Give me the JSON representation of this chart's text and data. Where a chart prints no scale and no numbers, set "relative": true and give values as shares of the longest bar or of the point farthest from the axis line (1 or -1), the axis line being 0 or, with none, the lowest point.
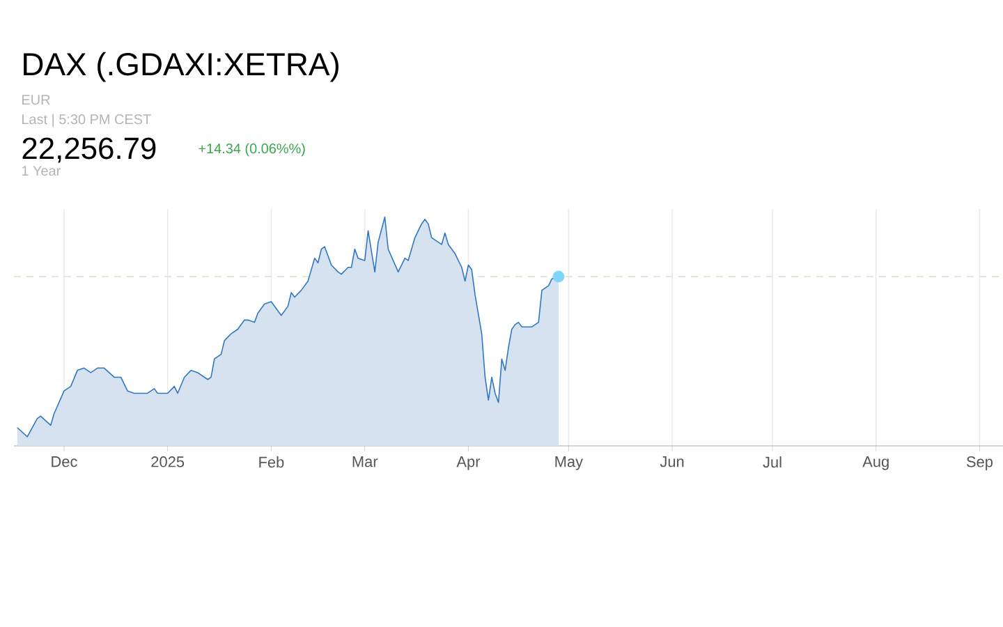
{
  "chart_data": {
    "type": "area",
    "title": "DAX (.GDAXI:XETRA)",
    "annotations": [
      "EUR",
      "Last | 5:30 PM CEST",
      "22,256.79",
      "+14.34 (0.06%%)",
      "1 Year"
    ],
    "relative": true,
    "grid": true,
    "xlim": [
      "2024-11-16",
      "2025-09-08"
    ],
    "xticks": [
      {
        "value": "2024-12-01",
        "label": "Dec"
      },
      {
        "value": "2025-01-01",
        "label": "2025"
      },
      {
        "value": "2025-02-01",
        "label": "Feb"
      },
      {
        "value": "2025-03-01",
        "label": "Mar"
      },
      {
        "value": "2025-04-01",
        "label": "Apr"
      },
      {
        "value": "2025-05-01",
        "label": "May"
      },
      {
        "value": "2025-06-01",
        "label": "Jun"
      },
      {
        "value": "2025-07-01",
        "label": "Jul"
      },
      {
        "value": "2025-08-01",
        "label": "Aug"
      },
      {
        "value": "2025-09-01",
        "label": "Sep"
      }
    ],
    "ref_lines": [
      {
        "axis": "y",
        "value": 0.74,
        "color": "#dcebd3",
        "line_style": "dashed"
      }
    ],
    "series": [
      {
        "color": "#2f78c0",
        "x": [
          "2024-11-17",
          "2024-11-20",
          "2024-11-23",
          "2024-11-24",
          "2024-11-27",
          "2024-11-28",
          "2024-12-01",
          "2024-12-03",
          "2024-12-05",
          "2024-12-07",
          "2024-12-09",
          "2024-12-11",
          "2024-12-13",
          "2024-12-16",
          "2024-12-18",
          "2024-12-20",
          "2024-12-22",
          "2024-12-26",
          "2024-12-28",
          "2024-12-29",
          "2025-01-01",
          "2025-01-03",
          "2025-01-04",
          "2025-01-06",
          "2025-01-08",
          "2025-01-10",
          "2025-01-13",
          "2025-01-14",
          "2025-01-15",
          "2025-01-17",
          "2025-01-18",
          "2025-01-20",
          "2025-01-22",
          "2025-01-24",
          "2025-01-25",
          "2025-01-27",
          "2025-01-28",
          "2025-01-30",
          "2025-02-01",
          "2025-02-04",
          "2025-02-06",
          "2025-02-07",
          "2025-02-08",
          "2025-02-10",
          "2025-02-12",
          "2025-02-14",
          "2025-02-15",
          "2025-02-16",
          "2025-02-17",
          "2025-02-19",
          "2025-02-21",
          "2025-02-22",
          "2025-02-24",
          "2025-02-25",
          "2025-02-26",
          "2025-02-27",
          "2025-03-01",
          "2025-03-02",
          "2025-03-04",
          "2025-03-05",
          "2025-03-07",
          "2025-03-08",
          "2025-03-11",
          "2025-03-13",
          "2025-03-14",
          "2025-03-16",
          "2025-03-18",
          "2025-03-19",
          "2025-03-20",
          "2025-03-21",
          "2025-03-23",
          "2025-03-24",
          "2025-03-25",
          "2025-03-26",
          "2025-03-28",
          "2025-03-30",
          "2025-03-31",
          "2025-04-01",
          "2025-04-02",
          "2025-04-03",
          "2025-04-05",
          "2025-04-06",
          "2025-04-07",
          "2025-04-08",
          "2025-04-09",
          "2025-04-10",
          "2025-04-11",
          "2025-04-12",
          "2025-04-13",
          "2025-04-14",
          "2025-04-15",
          "2025-04-16",
          "2025-04-17",
          "2025-04-20",
          "2025-04-22",
          "2025-04-23",
          "2025-04-25",
          "2025-04-26",
          "2025-04-28"
        ],
        "values": [
          0.08,
          0.04,
          0.12,
          0.13,
          0.09,
          0.14,
          0.24,
          0.26,
          0.33,
          0.34,
          0.32,
          0.34,
          0.34,
          0.3,
          0.3,
          0.24,
          0.23,
          0.23,
          0.25,
          0.23,
          0.23,
          0.26,
          0.23,
          0.3,
          0.33,
          0.32,
          0.29,
          0.3,
          0.38,
          0.4,
          0.46,
          0.49,
          0.51,
          0.55,
          0.55,
          0.54,
          0.58,
          0.62,
          0.63,
          0.57,
          0.61,
          0.67,
          0.65,
          0.68,
          0.72,
          0.82,
          0.8,
          0.86,
          0.87,
          0.79,
          0.76,
          0.75,
          0.78,
          0.78,
          0.86,
          0.82,
          0.81,
          0.94,
          0.76,
          0.89,
          1.0,
          0.86,
          0.76,
          0.82,
          0.81,
          0.91,
          0.97,
          0.99,
          0.97,
          0.91,
          0.89,
          0.88,
          0.93,
          0.88,
          0.84,
          0.78,
          0.72,
          0.79,
          0.77,
          0.66,
          0.49,
          0.3,
          0.2,
          0.3,
          0.23,
          0.19,
          0.38,
          0.33,
          0.43,
          0.51,
          0.53,
          0.54,
          0.52,
          0.52,
          0.54,
          0.68,
          0.7,
          0.73,
          0.74
        ]
      },
      {
        "type": "scatter",
        "color": "#80d4f8",
        "marker": "circle",
        "x": [
          "2025-04-28"
        ],
        "values": [
          0.74
        ]
      }
    ]
  }
}
